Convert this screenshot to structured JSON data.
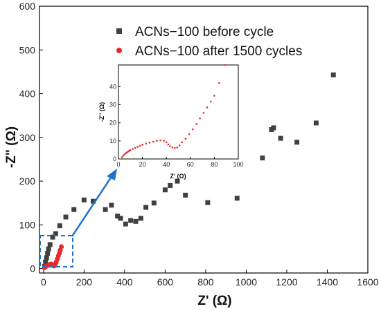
{
  "chart_data": [
    {
      "type": "scatter",
      "xlabel": "Z' (Ω)",
      "ylabel": "-Z\" (Ω)",
      "xlim": [
        -20,
        1600
      ],
      "ylim": [
        -10,
        600
      ],
      "x_ticks": [
        0,
        200,
        400,
        600,
        800,
        1000,
        1200,
        1400,
        1600
      ],
      "y_ticks": [
        0,
        100,
        200,
        300,
        400,
        500,
        600
      ],
      "legend_position": "top-right",
      "grid": false,
      "series": [
        {
          "name": "ACNs−100 before cycle",
          "color": "#404040",
          "marker": "square",
          "points": [
            [
              5,
              5
            ],
            [
              10,
              15
            ],
            [
              15,
              25
            ],
            [
              20,
              35
            ],
            [
              25,
              45
            ],
            [
              32,
              55
            ],
            [
              45,
              72
            ],
            [
              60,
              80
            ],
            [
              80,
              98
            ],
            [
              110,
              118
            ],
            [
              150,
              135
            ],
            [
              200,
              157
            ],
            [
              245,
              154
            ],
            [
              305,
              135
            ],
            [
              335,
              145
            ],
            [
              365,
              120
            ],
            [
              380,
              115
            ],
            [
              405,
              102
            ],
            [
              430,
              110
            ],
            [
              455,
              108
            ],
            [
              480,
              115
            ],
            [
              505,
              140
            ],
            [
              545,
              150
            ],
            [
              600,
              180
            ],
            [
              625,
              190
            ],
            [
              660,
              200
            ],
            [
              700,
              168
            ],
            [
              810,
              151
            ],
            [
              955,
              161
            ],
            [
              1080,
              253
            ],
            [
              1125,
              318
            ],
            [
              1135,
              322
            ],
            [
              1170,
              298
            ],
            [
              1250,
              289
            ],
            [
              1345,
              333
            ],
            [
              1430,
              443
            ]
          ]
        },
        {
          "name": "ACNs−100 after 1500 cycles",
          "color": "#e8282b",
          "marker": "circle",
          "points": [
            [
              4,
              2
            ],
            [
              6,
              3
            ],
            [
              8,
              4
            ],
            [
              10,
              4.5
            ],
            [
              13,
              5.5
            ],
            [
              17,
              6.5
            ],
            [
              22,
              7.5
            ],
            [
              27,
              8.5
            ],
            [
              32,
              9.5
            ],
            [
              37,
              10.5
            ],
            [
              42,
              10
            ],
            [
              44,
              8
            ],
            [
              48,
              7
            ],
            [
              52,
              6
            ],
            [
              58,
              10
            ],
            [
              63,
              15
            ],
            [
              68,
              22
            ],
            [
              73,
              29
            ],
            [
              78,
              35
            ],
            [
              82,
              42
            ],
            [
              88,
              50
            ]
          ]
        }
      ]
    },
    {
      "type": "scatter",
      "xlabel": "Z' (Ω)",
      "ylabel": "-Z\" (Ω)",
      "xlim": [
        0,
        100
      ],
      "ylim": [
        0,
        52
      ],
      "x_ticks": [
        0,
        20,
        40,
        60,
        80,
        100
      ],
      "y_ticks": [
        0,
        10,
        20,
        30,
        40
      ],
      "series": [
        {
          "name": "ACNs−100 after 1500 cycles",
          "color": "#e8282b",
          "marker": "circle",
          "points": [
            [
              3,
              1
            ],
            [
              4,
              1.8
            ],
            [
              5,
              2.5
            ],
            [
              6,
              3.1
            ],
            [
              7,
              3.6
            ],
            [
              8,
              4.1
            ],
            [
              9,
              4.5
            ],
            [
              10,
              4.9
            ],
            [
              12,
              5.5
            ],
            [
              14,
              6.1
            ],
            [
              16,
              6.7
            ],
            [
              18,
              7.3
            ],
            [
              20,
              7.9
            ],
            [
              23,
              8.5
            ],
            [
              26,
              9
            ],
            [
              29,
              9.5
            ],
            [
              32,
              10
            ],
            [
              35,
              10.3
            ],
            [
              38,
              10.1
            ],
            [
              40,
              9.3
            ],
            [
              41.5,
              8.1
            ],
            [
              43,
              7
            ],
            [
              45,
              6.3
            ],
            [
              47,
              6.1
            ],
            [
              49,
              6.4
            ],
            [
              51,
              7.5
            ],
            [
              53,
              9.2
            ],
            [
              56,
              11.2
            ],
            [
              59,
              13.8
            ],
            [
              62,
              16.4
            ],
            [
              65,
              19.3
            ],
            [
              68,
              22.5
            ],
            [
              71,
              25.5
            ],
            [
              74,
              28.5
            ],
            [
              77,
              31.7
            ],
            [
              80,
              35
            ],
            [
              84,
              42
            ],
            [
              89,
              52
            ]
          ]
        }
      ]
    }
  ]
}
